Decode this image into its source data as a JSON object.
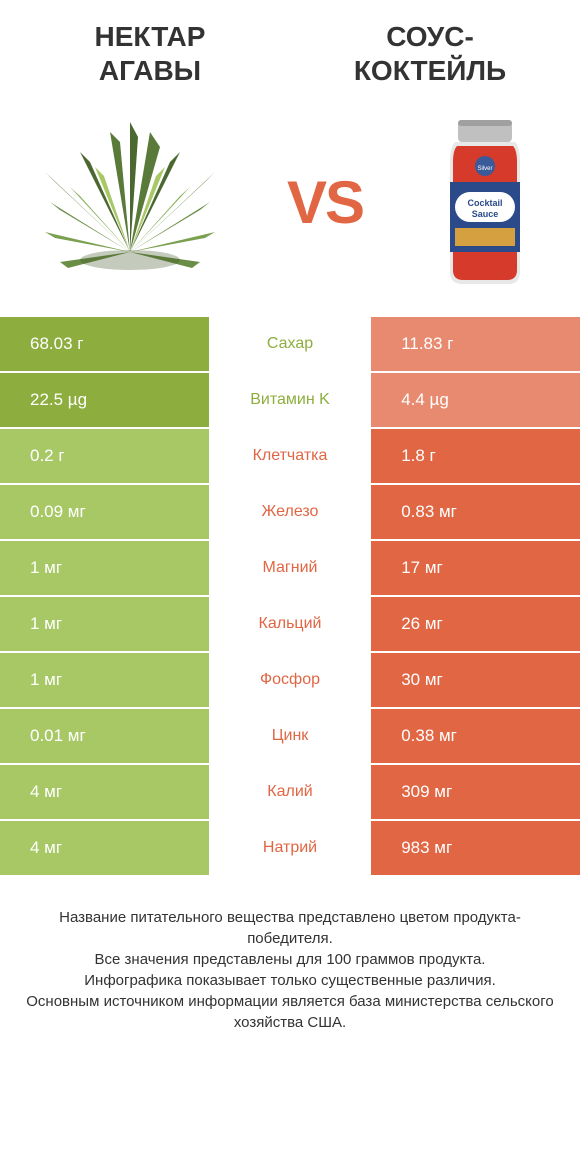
{
  "header": {
    "left_title": "НЕКТАР АГАВЫ",
    "right_title": "СОУС-КОКТЕЙЛЬ",
    "vs_text": "VS"
  },
  "colors": {
    "green_win": "#8dae3e",
    "green_lose": "#a8c866",
    "orange_win": "#e06644",
    "orange_lose": "#e88a70",
    "mid_green": "#8dae3e",
    "mid_orange": "#e06644",
    "row_border": "#ffffff",
    "text_dark": "#333333"
  },
  "rows": [
    {
      "nutrient": "Сахар",
      "left": "68.03 г",
      "right": "11.83 г",
      "winner": "left"
    },
    {
      "nutrient": "Витамин K",
      "left": "22.5 µg",
      "right": "4.4 µg",
      "winner": "left"
    },
    {
      "nutrient": "Клетчатка",
      "left": "0.2 г",
      "right": "1.8 г",
      "winner": "right"
    },
    {
      "nutrient": "Железо",
      "left": "0.09 мг",
      "right": "0.83 мг",
      "winner": "right"
    },
    {
      "nutrient": "Магний",
      "left": "1 мг",
      "right": "17 мг",
      "winner": "right"
    },
    {
      "nutrient": "Кальций",
      "left": "1 мг",
      "right": "26 мг",
      "winner": "right"
    },
    {
      "nutrient": "Фосфор",
      "left": "1 мг",
      "right": "30 мг",
      "winner": "right"
    },
    {
      "nutrient": "Цинк",
      "left": "0.01 мг",
      "right": "0.38 мг",
      "winner": "right"
    },
    {
      "nutrient": "Калий",
      "left": "4 мг",
      "right": "309 мг",
      "winner": "right"
    },
    {
      "nutrient": "Натрий",
      "left": "4 мг",
      "right": "983 мг",
      "winner": "right"
    }
  ],
  "footer": {
    "line1": "Название питательного вещества представлено цветом продукта-победителя.",
    "line2": "Все значения представлены для 100 граммов продукта.",
    "line3": "Инфографика показывает только существенные различия.",
    "line4": "Основным источником информации является база министерства сельского хозяйства США."
  }
}
